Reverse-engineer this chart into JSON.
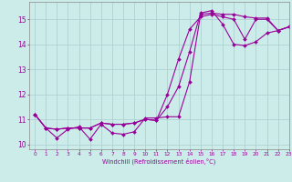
{
  "xlabel": "Windchill (Refroidissement éolien,°C)",
  "background_color": "#ccecea",
  "line_color": "#990099",
  "xlim": [
    -0.5,
    23
  ],
  "ylim": [
    9.8,
    15.7
  ],
  "yticks": [
    10,
    11,
    12,
    13,
    14,
    15
  ],
  "xticks": [
    0,
    1,
    2,
    3,
    4,
    5,
    6,
    7,
    8,
    9,
    10,
    11,
    12,
    13,
    14,
    15,
    16,
    17,
    18,
    19,
    20,
    21,
    22,
    23
  ],
  "series": [
    [
      11.2,
      10.65,
      10.25,
      10.6,
      10.7,
      10.2,
      10.8,
      10.45,
      10.4,
      10.5,
      11.05,
      11.05,
      11.1,
      11.1,
      12.5,
      15.2,
      15.25,
      15.2,
      15.2,
      15.1,
      15.05,
      15.05,
      14.55,
      14.7
    ],
    [
      11.2,
      10.65,
      10.6,
      10.65,
      10.65,
      10.65,
      10.85,
      10.8,
      10.8,
      10.85,
      11.0,
      10.95,
      11.5,
      12.3,
      13.7,
      15.25,
      15.35,
      14.8,
      14.0,
      13.95,
      14.1,
      14.45,
      14.55,
      14.7
    ],
    [
      11.2,
      10.65,
      10.6,
      10.65,
      10.65,
      10.65,
      10.85,
      10.8,
      10.8,
      10.85,
      11.0,
      10.95,
      12.0,
      13.4,
      14.6,
      15.1,
      15.2,
      15.1,
      15.0,
      14.2,
      15.0,
      15.0,
      14.55,
      14.7
    ]
  ],
  "grid_color": "#aacccc",
  "marker": "D",
  "markersize": 2.0,
  "linewidth": 0.8
}
